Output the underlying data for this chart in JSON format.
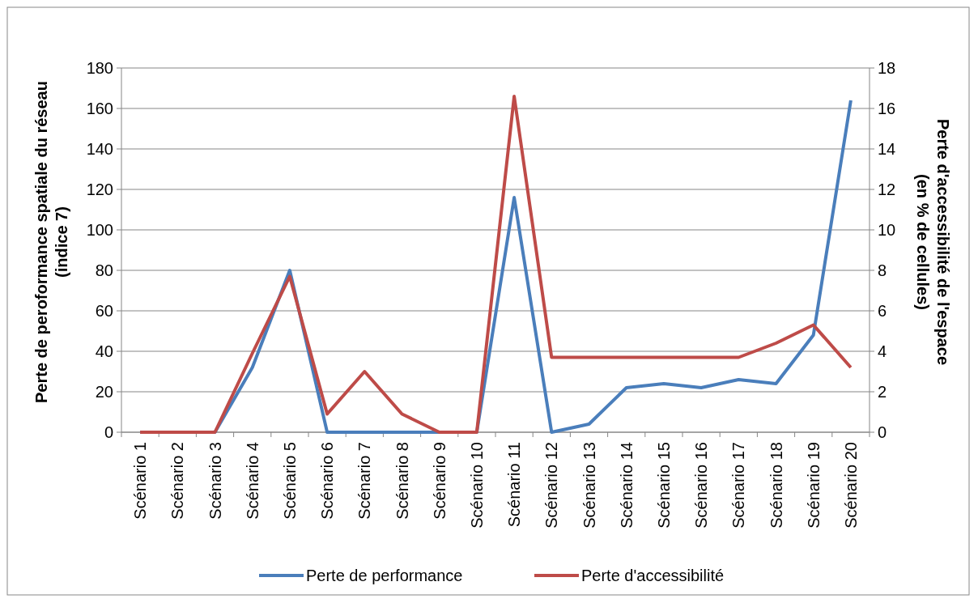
{
  "chart_data": {
    "type": "line",
    "ylabel": "Perte de peroformance spatiale du réseau\n(indice 7)",
    "y2label": "Perte d'accessibilité de l'espace\n(en % de cellules)",
    "categories": [
      "Scénario 1",
      "Scénario 2",
      "Scénario 3",
      "Scénario 4",
      "Scénario 5",
      "Scénario 6",
      "Scénario 7",
      "Scénario 8",
      "Scénario 9",
      "Scénario 10",
      "Scénario 11",
      "Scénario 12",
      "Scénario 13",
      "Scénario 14",
      "Scénario 15",
      "Scénario 16",
      "Scénario 17",
      "Scénario 18",
      "Scénario 19",
      "Scénario 20"
    ],
    "series": [
      {
        "name": "Perte de performance",
        "color": "#4a7ebb",
        "values": [
          0,
          0,
          0,
          32,
          80,
          0,
          0,
          0,
          0,
          0,
          116,
          0,
          4,
          22,
          24,
          22,
          26,
          24,
          48,
          164
        ]
      },
      {
        "name": "Perte d'accessibilité",
        "color": "#be4b48",
        "axis": "y2",
        "values": [
          0,
          0,
          0,
          3.9,
          7.7,
          0.9,
          3.0,
          0.9,
          0,
          0,
          16.6,
          3.7,
          3.7,
          3.7,
          3.7,
          3.7,
          3.7,
          4.4,
          5.3,
          3.2
        ]
      }
    ],
    "ylim": [
      0,
      180
    ],
    "yticks": [
      0,
      20,
      40,
      60,
      80,
      100,
      120,
      140,
      160,
      180
    ],
    "y2lim": [
      0,
      18
    ],
    "y2ticks": [
      0,
      2,
      4,
      6,
      8,
      10,
      12,
      14,
      16,
      18
    ],
    "grid": "y",
    "legend": "bottom",
    "marker": "none",
    "line_style": "solid"
  }
}
